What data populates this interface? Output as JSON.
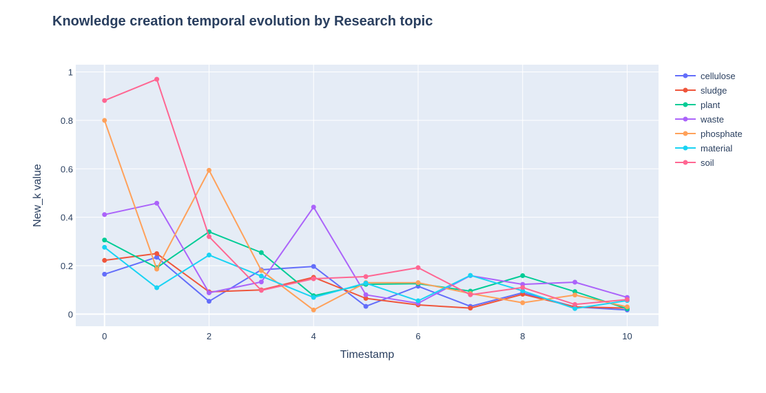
{
  "chart_data": {
    "type": "line",
    "title": "Knowledge creation temporal evolution by Research topic",
    "xlabel": "Timestamp",
    "ylabel": "New_k value",
    "x": [
      0,
      1,
      2,
      3,
      4,
      5,
      6,
      7,
      8,
      9,
      10
    ],
    "xlim": [
      -0.55,
      10.6
    ],
    "ylim": [
      -0.05,
      1.03
    ],
    "xticks": [
      0,
      2,
      4,
      6,
      8,
      10
    ],
    "yticks": [
      0,
      0.2,
      0.4,
      0.6,
      0.8,
      1
    ],
    "xtick_labels": [
      "0",
      "2",
      "4",
      "6",
      "8",
      "10"
    ],
    "ytick_labels": [
      "0",
      "0.2",
      "0.4",
      "0.6",
      "0.8",
      "1"
    ],
    "grid": true,
    "legend_position": "top-right",
    "plot_background": "#e5ecf6",
    "series": [
      {
        "name": "cellulose",
        "color": "#636efa",
        "values": [
          0.165,
          0.235,
          0.053,
          0.183,
          0.197,
          0.032,
          0.115,
          0.032,
          0.088,
          0.03,
          0.017
        ]
      },
      {
        "name": "sludge",
        "color": "#ef553b",
        "values": [
          0.222,
          0.25,
          0.092,
          0.1,
          0.152,
          0.065,
          0.038,
          0.025,
          0.082,
          0.03,
          0.025
        ]
      },
      {
        "name": "plant",
        "color": "#00cc96",
        "values": [
          0.306,
          0.192,
          0.34,
          0.254,
          0.076,
          0.123,
          0.126,
          0.095,
          0.159,
          0.093,
          0.022
        ]
      },
      {
        "name": "waste",
        "color": "#ab63fa",
        "values": [
          0.411,
          0.458,
          0.088,
          0.133,
          0.442,
          0.08,
          0.045,
          0.159,
          0.123,
          0.132,
          0.069
        ]
      },
      {
        "name": "phosphate",
        "color": "#ffa15a",
        "values": [
          0.8,
          0.186,
          0.594,
          0.18,
          0.017,
          0.13,
          0.13,
          0.085,
          0.047,
          0.079,
          0.03
        ]
      },
      {
        "name": "material",
        "color": "#19d3f3",
        "values": [
          0.276,
          0.109,
          0.244,
          0.157,
          0.069,
          0.128,
          0.055,
          0.16,
          0.096,
          0.023,
          0.056
        ]
      },
      {
        "name": "soil",
        "color": "#ff6692",
        "values": [
          0.882,
          0.97,
          0.32,
          0.098,
          0.146,
          0.155,
          0.192,
          0.08,
          0.11,
          0.04,
          0.06
        ]
      }
    ]
  }
}
